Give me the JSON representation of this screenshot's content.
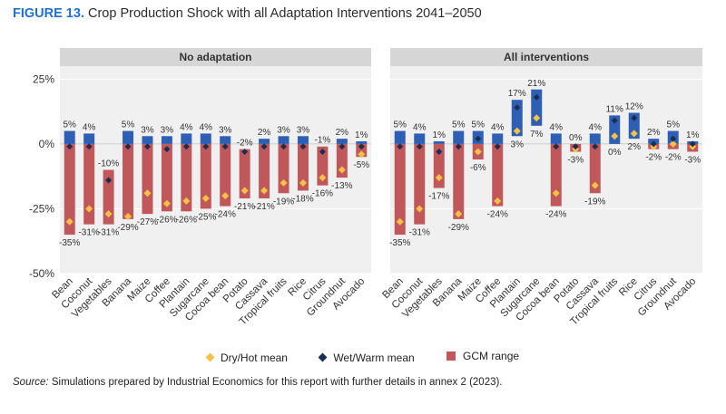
{
  "figure": {
    "label": "FIGURE 13.",
    "title": "Crop Production Shock with all Adaptation Interventions 2041–2050"
  },
  "legend": {
    "dry_hot": "Dry/Hot mean",
    "wet_warm": "Wet/Warm mean",
    "gcm": "GCM range"
  },
  "source": {
    "label": "Source:",
    "text": "Simulations prepared by Industrial Economics for this report with further details in annex 2 (2023)."
  },
  "colors": {
    "range_neg": "#c0575a",
    "range_pos": "#2e5fb5",
    "dry_hot": "#f5c246",
    "wet_warm": "#1a2e55",
    "panel_bg": "#f0f0f0",
    "header_bg": "#d6d6d6"
  },
  "chart_data": [
    {
      "type": "bar",
      "title": "No adaptation",
      "y_ticks": [
        "25%",
        "0%",
        "-25%",
        "-50%"
      ],
      "ylim": [
        -50,
        30
      ],
      "categories": [
        "Bean",
        "Coconut",
        "Vegetables",
        "Banana",
        "Maize",
        "Coffee",
        "Plantain",
        "Sugarcane",
        "Cocoa bean",
        "Potato",
        "Cassava",
        "Tropical fruits",
        "Rice",
        "Citrus",
        "Groundnut",
        "Avocado"
      ],
      "gcm_max": [
        5,
        4,
        -10,
        5,
        3,
        3,
        4,
        4,
        3,
        -2,
        2,
        3,
        3,
        -1,
        2,
        1
      ],
      "gcm_min": [
        -35,
        -31,
        -31,
        -29,
        -27,
        -26,
        -26,
        -25,
        -24,
        -21,
        -21,
        -19,
        -18,
        -16,
        -13,
        -5
      ],
      "top_labels": [
        "5%",
        "4%",
        "-10%",
        "5%",
        "3%",
        "3%",
        "4%",
        "4%",
        "3%",
        "-2%",
        "2%",
        "3%",
        "3%",
        "-1%",
        "2%",
        "1%"
      ],
      "bottom_labels": [
        "-35%",
        "-31%",
        "-31%",
        "-29%",
        "-27%",
        "-26%",
        "-26%",
        "-25%",
        "-24%",
        "-21%",
        "-21%",
        "-19%",
        "-18%",
        "-16%",
        "-13%",
        "-5%"
      ],
      "dry_hot_mean": [
        -30,
        -25,
        -27,
        -28,
        -19,
        -23,
        -22,
        -21,
        -20,
        -18,
        -18,
        -15,
        -15,
        -13,
        -10,
        -4
      ],
      "wet_warm_mean": [
        -1,
        -1,
        -14,
        -1,
        -1,
        -2,
        -1,
        -1,
        -1,
        -3,
        -1,
        -1,
        -1,
        -3,
        -1,
        -1
      ]
    },
    {
      "type": "bar",
      "title": "All interventions",
      "y_ticks": [
        "25%",
        "0%",
        "-25%",
        "-50%"
      ],
      "ylim": [
        -50,
        30
      ],
      "categories": [
        "Bean",
        "Coconut",
        "Vegetables",
        "Banana",
        "Maize",
        "Coffee",
        "Plantain",
        "Sugarcane",
        "Cocoa bean",
        "Potato",
        "Cassava",
        "Tropical fruits",
        "Rice",
        "Citrus",
        "Groundnut",
        "Avocado"
      ],
      "gcm_max": [
        5,
        4,
        1,
        5,
        5,
        4,
        17,
        21,
        4,
        0,
        4,
        11,
        12,
        2,
        5,
        1
      ],
      "gcm_min": [
        -35,
        -31,
        -17,
        -29,
        -6,
        -24,
        3,
        7,
        -24,
        -3,
        -19,
        0,
        2,
        -2,
        -2,
        -3
      ],
      "top_labels": [
        "5%",
        "4%",
        "1%",
        "5%",
        "5%",
        "4%",
        "17%",
        "21%",
        "4%",
        "0%",
        "4%",
        "11%",
        "12%",
        "2%",
        "5%",
        "1%"
      ],
      "bottom_labels": [
        "-35%",
        "-31%",
        "-17%",
        "-29%",
        "-6%",
        "-24%",
        "3%",
        "7%",
        "-24%",
        "-3%",
        "-19%",
        "0%",
        "2%",
        "-2%",
        "-2%",
        "-3%"
      ],
      "dry_hot_mean": [
        -30,
        -25,
        -13,
        -27,
        -3,
        -22,
        5,
        10,
        -19,
        -2,
        -16,
        3,
        4,
        -1,
        0,
        -1
      ],
      "wet_warm_mean": [
        -1,
        -1,
        -3,
        -1,
        2,
        -1,
        14,
        18,
        -1,
        -1,
        -1,
        9,
        10,
        0,
        2,
        0
      ]
    }
  ]
}
